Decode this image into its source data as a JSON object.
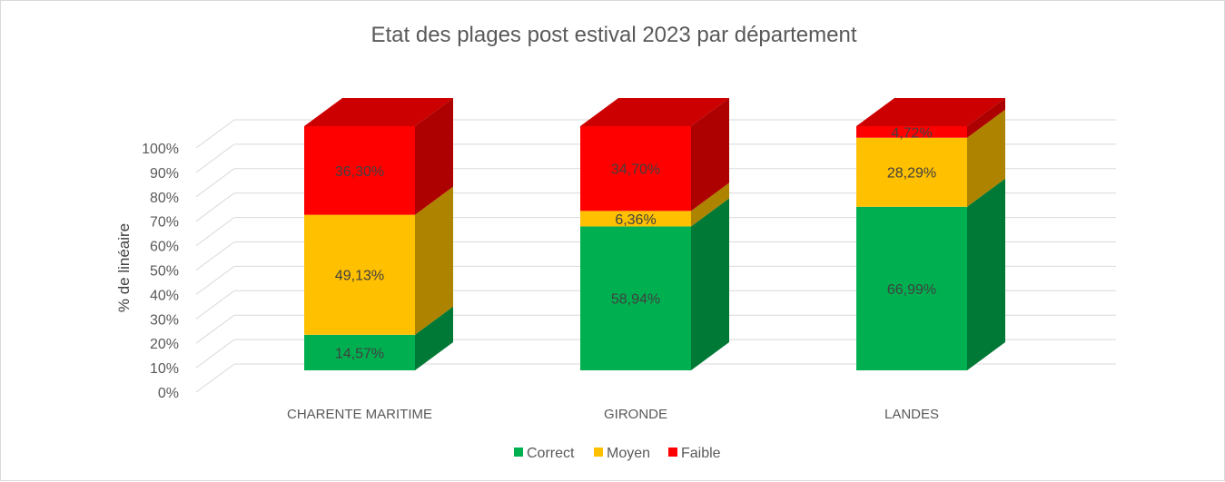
{
  "chart_data": {
    "type": "bar",
    "stacked": true,
    "three_d": true,
    "title": "Etat des plages post estival 2023 par département",
    "ylabel": "% de linéaire",
    "xlabel": "",
    "ylim": [
      0,
      100
    ],
    "yticks": [
      "0%",
      "10%",
      "20%",
      "30%",
      "40%",
      "50%",
      "60%",
      "70%",
      "80%",
      "90%",
      "100%"
    ],
    "categories": [
      "CHARENTE MARITIME",
      "GIRONDE",
      "LANDES"
    ],
    "series": [
      {
        "name": "Correct",
        "color": "#00b050",
        "values": [
          14.57,
          58.94,
          66.99
        ],
        "labels": [
          "14,57%",
          "58,94%",
          "66,99%"
        ]
      },
      {
        "name": "Moyen",
        "color": "#ffc000",
        "values": [
          49.13,
          6.36,
          28.29
        ],
        "labels": [
          "49,13%",
          "6,36%",
          "28,29%"
        ]
      },
      {
        "name": "Faible",
        "color": "#ff0000",
        "values": [
          36.3,
          34.7,
          4.72
        ],
        "labels": [
          "36,30%",
          "34,70%",
          "4,72%"
        ]
      }
    ],
    "grid": true,
    "legend": "bottom"
  }
}
